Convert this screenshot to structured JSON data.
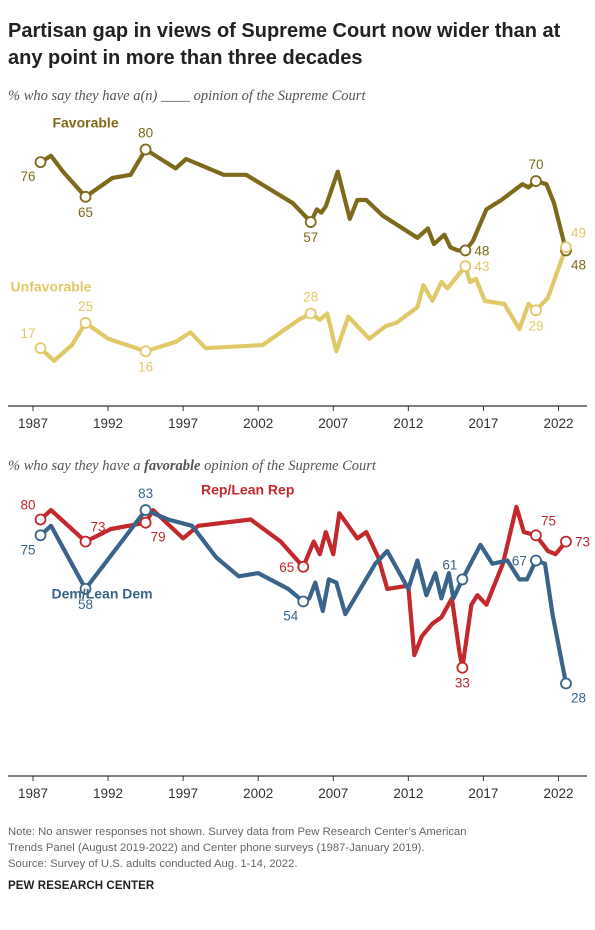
{
  "title": "Partisan gap in views of Supreme Court now wider than at any point in more than three decades",
  "subtitle1": "% who say they have a(n) ____ opinion of the Supreme Court",
  "subtitle2": {
    "before": "% who say they have a ",
    "emph": "favorable",
    "after": " opinion of the Supreme Court"
  },
  "note": {
    "line1": "Note: No answer responses not shown. Survey data from Pew Research Center’s American",
    "line2": "Trends Panel (August 2019-2022) and Center phone surveys (1987-January 2019).",
    "line3": "Source: Survey of U.S. adults conducted Aug. 1-14, 2022."
  },
  "footer": "PEW RESEARCH CENTER",
  "colors": {
    "favorable": "#7d6a1a",
    "unfavorable": "#e0c968",
    "rep": "#c3282d",
    "dem": "#3a6489",
    "axis": "#333333",
    "tick_label": "#333333"
  },
  "chart_data": [
    {
      "type": "line",
      "x_ticks": [
        1987,
        1992,
        1997,
        2002,
        2007,
        2012,
        2017,
        2022
      ],
      "xlim": [
        1987,
        2023.5
      ],
      "ylim": [
        5,
        90
      ],
      "grid": false,
      "series": [
        {
          "name": "Favorable",
          "label_at": [
            1990.5,
            87
          ],
          "points": [
            [
              1987.5,
              76
            ],
            [
              1988.2,
              78
            ],
            [
              1989.0,
              73
            ],
            [
              1990.5,
              65
            ],
            [
              1992.3,
              71
            ],
            [
              1993.5,
              72
            ],
            [
              1994.5,
              80
            ],
            [
              1996.5,
              74
            ],
            [
              1997.2,
              77
            ],
            [
              1999.7,
              72
            ],
            [
              2001.2,
              72
            ],
            [
              2004.3,
              63
            ],
            [
              2005.5,
              57
            ],
            [
              2005.9,
              61
            ],
            [
              2006.2,
              60
            ],
            [
              2006.5,
              62
            ],
            [
              2007.3,
              73
            ],
            [
              2008.1,
              58
            ],
            [
              2008.6,
              64
            ],
            [
              2009.2,
              64
            ],
            [
              2010.3,
              59
            ],
            [
              2012.6,
              52
            ],
            [
              2013.3,
              55
            ],
            [
              2013.7,
              50
            ],
            [
              2014.4,
              53
            ],
            [
              2014.8,
              49
            ],
            [
              2015.3,
              48
            ],
            [
              2015.8,
              48
            ],
            [
              2016.3,
              51
            ],
            [
              2017.2,
              61
            ],
            [
              2018.2,
              64
            ],
            [
              2019.6,
              69
            ],
            [
              2020.0,
              68
            ],
            [
              2020.5,
              70
            ],
            [
              2021.2,
              69
            ],
            [
              2021.7,
              63
            ],
            [
              2022.5,
              48
            ]
          ],
          "labels": [
            {
              "x": 1987.5,
              "y": 76,
              "text": "76",
              "pos": "below-left"
            },
            {
              "x": 1990.5,
              "y": 65,
              "text": "65",
              "pos": "below"
            },
            {
              "x": 1994.5,
              "y": 80,
              "text": "80",
              "pos": "above"
            },
            {
              "x": 2005.5,
              "y": 57,
              "text": "57",
              "pos": "below"
            },
            {
              "x": 2015.8,
              "y": 48,
              "text": "48",
              "pos": "right"
            },
            {
              "x": 2020.5,
              "y": 70,
              "text": "70",
              "pos": "above"
            },
            {
              "x": 2022.5,
              "y": 48,
              "text": "48",
              "pos": "below-right"
            }
          ]
        },
        {
          "name": "Unfavorable",
          "label_at": [
            1988.2,
            35
          ],
          "points": [
            [
              1987.5,
              17
            ],
            [
              1988.4,
              13
            ],
            [
              1989.6,
              18
            ],
            [
              1990.5,
              25
            ],
            [
              1992.0,
              20
            ],
            [
              1994.5,
              16
            ],
            [
              1996.5,
              19
            ],
            [
              1997.5,
              22
            ],
            [
              1998.5,
              17
            ],
            [
              2002.3,
              18
            ],
            [
              2004.7,
              26
            ],
            [
              2005.5,
              28
            ],
            [
              2006.1,
              26
            ],
            [
              2006.6,
              28
            ],
            [
              2007.2,
              16
            ],
            [
              2008.0,
              27
            ],
            [
              2009.4,
              20
            ],
            [
              2010.5,
              24
            ],
            [
              2011.2,
              25
            ],
            [
              2012.6,
              30
            ],
            [
              2013.0,
              37
            ],
            [
              2013.6,
              32
            ],
            [
              2014.2,
              38
            ],
            [
              2014.6,
              36
            ],
            [
              2015.3,
              40
            ],
            [
              2015.8,
              43
            ],
            [
              2016.1,
              38
            ],
            [
              2016.5,
              39
            ],
            [
              2017.1,
              32
            ],
            [
              2018.4,
              31
            ],
            [
              2019.4,
              23
            ],
            [
              2020.0,
              31
            ],
            [
              2020.5,
              29
            ],
            [
              2021.3,
              33
            ],
            [
              2022.5,
              49
            ]
          ],
          "labels": [
            {
              "x": 1987.5,
              "y": 17,
              "text": "17",
              "pos": "above-left"
            },
            {
              "x": 1990.5,
              "y": 25,
              "text": "25",
              "pos": "above"
            },
            {
              "x": 1994.5,
              "y": 16,
              "text": "16",
              "pos": "below"
            },
            {
              "x": 2005.5,
              "y": 28,
              "text": "28",
              "pos": "above"
            },
            {
              "x": 2015.8,
              "y": 43,
              "text": "43",
              "pos": "right"
            },
            {
              "x": 2020.5,
              "y": 29,
              "text": "29",
              "pos": "below"
            },
            {
              "x": 2022.5,
              "y": 49,
              "text": "49",
              "pos": "above-right"
            }
          ]
        }
      ]
    },
    {
      "type": "line",
      "x_ticks": [
        1987,
        1992,
        1997,
        2002,
        2007,
        2012,
        2017,
        2022
      ],
      "xlim": [
        1987,
        2023.5
      ],
      "ylim": [
        5,
        90
      ],
      "grid": false,
      "series": [
        {
          "name": "Rep/Lean Rep",
          "label_at": [
            2001.3,
            88
          ],
          "points": [
            [
              1987.5,
              80
            ],
            [
              1988.2,
              83
            ],
            [
              1990.5,
              73
            ],
            [
              1992.2,
              77
            ],
            [
              1994.5,
              79
            ],
            [
              1995.0,
              83
            ],
            [
              1997.0,
              74
            ],
            [
              1998.0,
              78
            ],
            [
              2001.5,
              80
            ],
            [
              2003.5,
              73
            ],
            [
              2005.0,
              65
            ],
            [
              2005.7,
              73
            ],
            [
              2006.1,
              69
            ],
            [
              2006.5,
              76
            ],
            [
              2007.0,
              69
            ],
            [
              2007.4,
              82
            ],
            [
              2008.6,
              74
            ],
            [
              2009.2,
              76
            ],
            [
              2010.0,
              68
            ],
            [
              2010.6,
              58
            ],
            [
              2012.0,
              59
            ],
            [
              2012.4,
              37
            ],
            [
              2012.9,
              43
            ],
            [
              2013.6,
              47
            ],
            [
              2014.2,
              49
            ],
            [
              2014.9,
              55
            ],
            [
              2015.4,
              38
            ],
            [
              2015.6,
              33
            ],
            [
              2016.2,
              53
            ],
            [
              2016.6,
              56
            ],
            [
              2017.2,
              53
            ],
            [
              2018.3,
              66
            ],
            [
              2019.2,
              84
            ],
            [
              2019.7,
              76
            ],
            [
              2020.5,
              75
            ],
            [
              2021.3,
              70
            ],
            [
              2021.8,
              69
            ],
            [
              2022.5,
              73
            ]
          ],
          "labels": [
            {
              "x": 1987.5,
              "y": 80,
              "text": "80",
              "pos": "above-left"
            },
            {
              "x": 1990.5,
              "y": 73,
              "text": "73",
              "pos": "above-right"
            },
            {
              "x": 1994.5,
              "y": 79,
              "text": "79",
              "pos": "below-right"
            },
            {
              "x": 2005.0,
              "y": 65,
              "text": "65",
              "pos": "left"
            },
            {
              "x": 2015.6,
              "y": 33,
              "text": "33",
              "pos": "below"
            },
            {
              "x": 2020.5,
              "y": 75,
              "text": "75",
              "pos": "above-right"
            },
            {
              "x": 2022.5,
              "y": 73,
              "text": "73",
              "pos": "right"
            }
          ]
        },
        {
          "name": "Dem/Lean Dem",
          "label_at": [
            1991.6,
            55
          ],
          "points": [
            [
              1987.5,
              75
            ],
            [
              1988.2,
              78
            ],
            [
              1990.5,
              58
            ],
            [
              1992.9,
              73
            ],
            [
              1994.5,
              83
            ],
            [
              1996.0,
              80
            ],
            [
              1997.6,
              78
            ],
            [
              1999.2,
              68
            ],
            [
              2000.7,
              62
            ],
            [
              2002.0,
              63
            ],
            [
              2004.0,
              58
            ],
            [
              2005.0,
              54
            ],
            [
              2005.4,
              55
            ],
            [
              2005.8,
              60
            ],
            [
              2006.3,
              51
            ],
            [
              2006.7,
              61
            ],
            [
              2007.2,
              60
            ],
            [
              2007.8,
              50
            ],
            [
              2008.8,
              58
            ],
            [
              2009.8,
              66
            ],
            [
              2010.6,
              70
            ],
            [
              2012.0,
              58
            ],
            [
              2012.6,
              67
            ],
            [
              2013.2,
              56
            ],
            [
              2013.8,
              63
            ],
            [
              2014.2,
              55
            ],
            [
              2014.7,
              63
            ],
            [
              2015.0,
              55
            ],
            [
              2015.6,
              61
            ],
            [
              2016.8,
              72
            ],
            [
              2017.6,
              66
            ],
            [
              2018.6,
              67
            ],
            [
              2019.4,
              61
            ],
            [
              2019.9,
              61
            ],
            [
              2020.5,
              67
            ],
            [
              2021.1,
              66
            ],
            [
              2021.6,
              50
            ],
            [
              2022.5,
              28
            ]
          ],
          "labels": [
            {
              "x": 1987.5,
              "y": 75,
              "text": "75",
              "pos": "below-left"
            },
            {
              "x": 1990.5,
              "y": 58,
              "text": "58",
              "pos": "below"
            },
            {
              "x": 1994.5,
              "y": 83,
              "text": "83",
              "pos": "above"
            },
            {
              "x": 2005.0,
              "y": 54,
              "text": "54",
              "pos": "below-left"
            },
            {
              "x": 2015.6,
              "y": 61,
              "text": "61",
              "pos": "above-left"
            },
            {
              "x": 2020.5,
              "y": 67,
              "text": "67",
              "pos": "left"
            },
            {
              "x": 2022.5,
              "y": 28,
              "text": "28",
              "pos": "below-right"
            }
          ]
        }
      ]
    }
  ]
}
